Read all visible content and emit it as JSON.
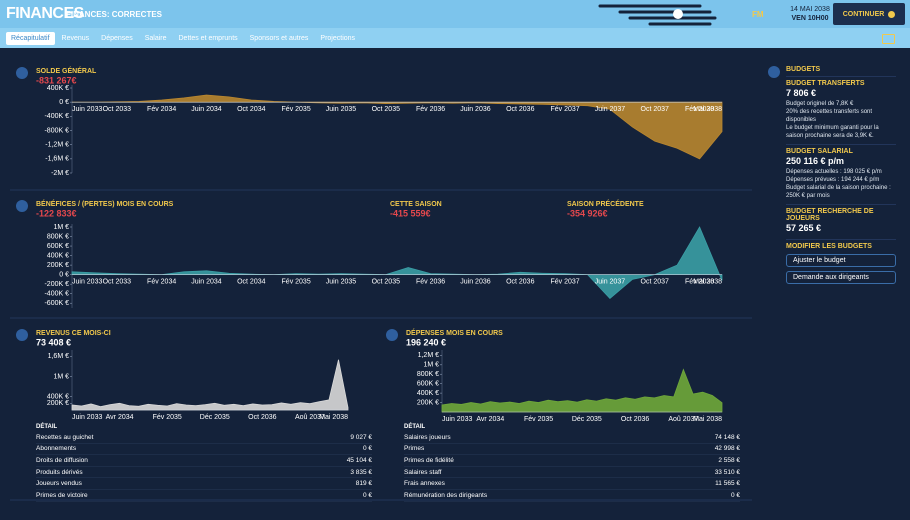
{
  "header": {
    "title": "FINANCES",
    "subtitle": "FINANCES: CORRECTES",
    "logo": "FM",
    "date": "14 MAI 2038",
    "time": "VEN 10H00",
    "button": "CONTINUER"
  },
  "tabs": [
    "Récapitulatif",
    "Revenus",
    "Dépenses",
    "Salaire",
    "Dettes et emprunts",
    "Sponsors et autres",
    "Projections"
  ],
  "chart_data": [
    {
      "type": "area",
      "title": "SOLDE GÉNÉRAL",
      "summary": "-831 267€",
      "summary_color": "#e5484d",
      "color": "#b8862f",
      "categories": [
        "Juin 2033",
        null,
        "Oct 2033",
        null,
        "Fév 2034",
        null,
        "Juin 2034",
        null,
        "Oct 2034",
        null,
        "Fév 2035",
        null,
        "Juin 2035",
        null,
        "Oct 2035",
        null,
        "Fév 2036",
        null,
        "Juin 2036",
        null,
        "Oct 2036",
        null,
        "Fév 2037",
        null,
        "Juin 2037",
        null,
        "Oct 2037",
        null,
        "Fév 2038",
        "Mai 2038"
      ],
      "values": [
        0,
        0,
        10000,
        20000,
        60000,
        120000,
        200000,
        150000,
        60000,
        20000,
        0,
        -20000,
        -30000,
        -20000,
        -40000,
        -30000,
        -20000,
        -30000,
        -20000,
        -40000,
        -50000,
        -60000,
        -80000,
        -100000,
        -200000,
        -700000,
        -1100000,
        -1300000,
        -1600000,
        -831267
      ],
      "ylim": [
        -2000000,
        400000
      ],
      "yticks": [
        {
          "value": 400000,
          "label": "400K €"
        },
        {
          "value": 0,
          "label": "0 €"
        },
        {
          "value": -400000,
          "label": "-400K €"
        },
        {
          "value": -800000,
          "label": "-800K €"
        },
        {
          "value": -1200000,
          "label": "-1,2M €"
        },
        {
          "value": -1600000,
          "label": "-1,6M €"
        },
        {
          "value": -2000000,
          "label": "-2M €"
        }
      ]
    },
    {
      "type": "area",
      "title": "BÉNÉFICES / (PERTES) MOIS EN COURS",
      "summary": "-122 833€",
      "summary_color": "#e5484d",
      "color": "#3a9ea5",
      "categories": [
        "Juin 2033",
        null,
        "Oct 2033",
        null,
        "Fév 2034",
        null,
        "Juin 2034",
        null,
        "Oct 2034",
        null,
        "Fév 2035",
        null,
        "Juin 2035",
        null,
        "Oct 2035",
        null,
        "Fév 2036",
        null,
        "Juin 2036",
        null,
        "Oct 2036",
        null,
        "Fév 2037",
        null,
        "Juin 2037",
        null,
        "Oct 2037",
        null,
        "Fév 2038",
        "Mai 2038"
      ],
      "values": [
        60000,
        40000,
        20000,
        10000,
        0,
        60000,
        80000,
        30000,
        10000,
        0,
        20000,
        10000,
        20000,
        10000,
        0,
        150000,
        20000,
        10000,
        0,
        10000,
        50000,
        30000,
        20000,
        0,
        -500000,
        -100000,
        0,
        200000,
        1000000,
        -122833
      ],
      "ylim": [
        -700000,
        1000000
      ],
      "yticks": [
        {
          "value": 1000000,
          "label": "1M €"
        },
        {
          "value": 800000,
          "label": "800K €"
        },
        {
          "value": 600000,
          "label": "600K €"
        },
        {
          "value": 400000,
          "label": "400K €"
        },
        {
          "value": 200000,
          "label": "200K €"
        },
        {
          "value": 0,
          "label": "0 €"
        },
        {
          "value": -200000,
          "label": "-200K €"
        },
        {
          "value": -400000,
          "label": "-400K €"
        },
        {
          "value": -600000,
          "label": "-600K €"
        }
      ]
    },
    {
      "type": "area",
      "title": "REVENUS CE MOIS-CI",
      "summary": "73 408 €",
      "summary_color": "#ffffff",
      "color": "#d9d9d9",
      "categories": [
        "Juin 2033",
        null,
        null,
        null,
        null,
        "Avr 2034",
        null,
        null,
        null,
        null,
        "Fév 2035",
        null,
        null,
        null,
        null,
        "Déc 2035",
        null,
        null,
        null,
        null,
        "Oct 2036",
        null,
        null,
        null,
        null,
        "Aoû 2037",
        null,
        null,
        null,
        "Mai 2038"
      ],
      "values": [
        150000,
        120000,
        180000,
        100000,
        160000,
        200000,
        130000,
        110000,
        170000,
        140000,
        120000,
        190000,
        150000,
        130000,
        160000,
        200000,
        140000,
        170000,
        130000,
        180000,
        150000,
        160000,
        210000,
        170000,
        220000,
        190000,
        250000,
        300000,
        1500000,
        73408
      ],
      "ylim": [
        0,
        1700000
      ],
      "yticks": [
        {
          "value": 1600000,
          "label": "1,6M €"
        },
        {
          "value": 1000000,
          "label": "1M €"
        },
        {
          "value": 400000,
          "label": "400K €"
        },
        {
          "value": 200000,
          "label": "200K €"
        }
      ]
    },
    {
      "type": "area",
      "title": "DÉPENSES MOIS EN COURS",
      "summary": "196 240 €",
      "summary_color": "#ffffff",
      "color": "#6fa83a",
      "categories": [
        "Juin 2033",
        null,
        null,
        null,
        null,
        "Avr 2034",
        null,
        null,
        null,
        null,
        "Fév 2035",
        null,
        null,
        null,
        null,
        "Déc 2035",
        null,
        null,
        null,
        null,
        "Oct 2036",
        null,
        null,
        null,
        null,
        "Aoû 2037",
        null,
        null,
        null,
        "Mai 2038"
      ],
      "values": [
        150000,
        180000,
        160000,
        200000,
        170000,
        220000,
        190000,
        210000,
        180000,
        230000,
        200000,
        250000,
        220000,
        240000,
        210000,
        260000,
        230000,
        280000,
        250000,
        300000,
        270000,
        320000,
        300000,
        350000,
        320000,
        900000,
        380000,
        420000,
        350000,
        196240
      ],
      "ylim": [
        0,
        1250000
      ],
      "yticks": [
        {
          "value": 1200000,
          "label": "1,2M €"
        },
        {
          "value": 1000000,
          "label": "1M €"
        },
        {
          "value": 800000,
          "label": "800K €"
        },
        {
          "value": 600000,
          "label": "600K €"
        },
        {
          "value": 400000,
          "label": "400K €"
        },
        {
          "value": 200000,
          "label": "200K €"
        }
      ]
    }
  ],
  "season_stats": [
    {
      "label": "CETTE SAISON",
      "value": "-415 559€"
    },
    {
      "label": "SAISON PRÉCÉDENTE",
      "value": "-354 926€"
    }
  ],
  "revenue_detail": {
    "heading": "DÉTAIL",
    "rows": [
      [
        "Recettes au guichet",
        "9 027 €"
      ],
      [
        "Abonnements",
        "0 €"
      ],
      [
        "Droits de diffusion",
        "45 104 €"
      ],
      [
        "Produits dérivés",
        "3 835 €"
      ],
      [
        "Joueurs vendus",
        "819 €"
      ],
      [
        "Primes de victoire",
        "0 €"
      ]
    ]
  },
  "expense_detail": {
    "heading": "DÉTAIL",
    "rows": [
      [
        "Salaires joueurs",
        "74 148 €"
      ],
      [
        "Primes",
        "42 998 €"
      ],
      [
        "Primes de fidélité",
        "2 558 €"
      ],
      [
        "Salaires staff",
        "33 510 €"
      ],
      [
        "Frais annexes",
        "11 565 €"
      ],
      [
        "Rémunération des dirigeants",
        "0 €"
      ]
    ]
  },
  "budgets": {
    "title": "BUDGETS",
    "transfer": {
      "title": "BUDGET TRANSFERTS",
      "amount": "7 806 €",
      "notes": [
        "Budget originel de 7,8K €",
        "20% des recettes transferts sont disponibles",
        "Le budget minimum garanti pour la saison prochaine sera de 3,9K €."
      ]
    },
    "wage": {
      "title": "BUDGET SALARIAL",
      "amount": "250 116 € p/m",
      "notes": [
        "Dépenses actuelles : 198 025 € p/m",
        "Dépenses prévues : 194 244 € p/m",
        "Budget salarial de la saison prochaine : 250K € par mois"
      ]
    },
    "scouting": {
      "title": "BUDGET RECHERCHE DE JOUEURS",
      "amount": "57 265 €"
    },
    "modify": {
      "title": "MODIFIER LES BUDGETS",
      "buttons": [
        "Ajuster le budget",
        "Demande aux dirigeants"
      ]
    }
  }
}
